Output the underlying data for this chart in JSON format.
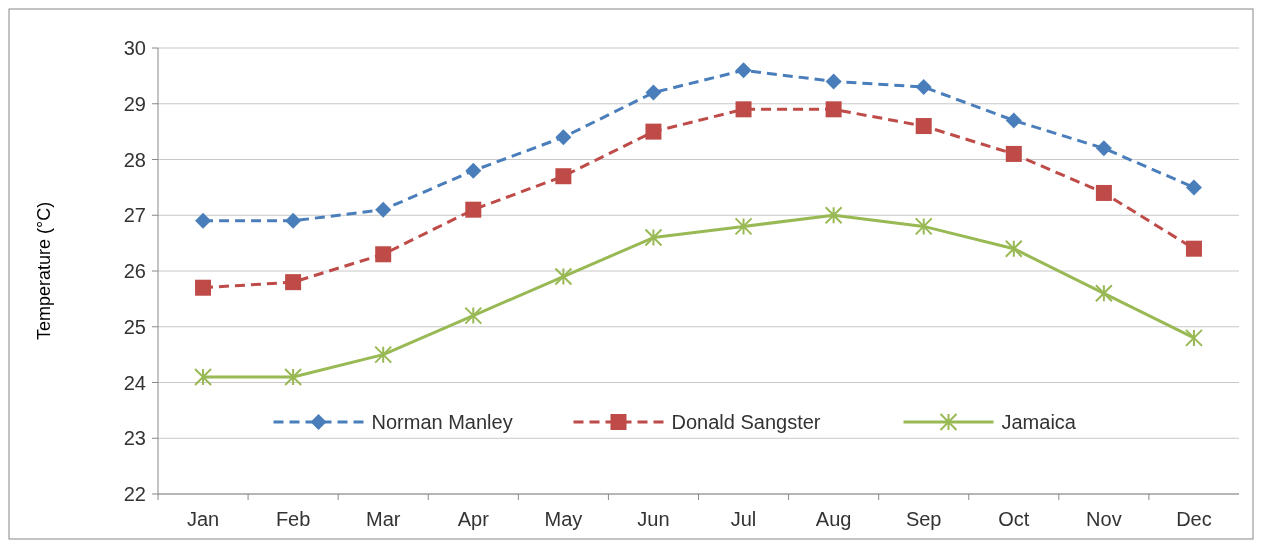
{
  "chart_data": {
    "type": "line",
    "ylabel": "Temperature (°C)",
    "categories": [
      "Jan",
      "Feb",
      "Mar",
      "Apr",
      "May",
      "Jun",
      "Jul",
      "Aug",
      "Sep",
      "Oct",
      "Nov",
      "Dec"
    ],
    "series": [
      {
        "name": "Norman Manley",
        "color": "#4a7ebb",
        "marker": "diamond",
        "line_style": "dashed",
        "values": [
          26.9,
          26.9,
          27.1,
          27.8,
          28.4,
          29.2,
          29.6,
          29.4,
          29.3,
          28.7,
          28.2,
          27.5
        ]
      },
      {
        "name": "Donald Sangster",
        "color": "#be4b48",
        "marker": "square",
        "line_style": "dashed",
        "values": [
          25.7,
          25.8,
          26.3,
          27.1,
          27.7,
          28.5,
          28.9,
          28.9,
          28.6,
          28.1,
          27.4,
          26.4
        ]
      },
      {
        "name": "Jamaica",
        "color": "#98b954",
        "marker": "cross",
        "line_style": "solid",
        "values": [
          24.1,
          24.1,
          24.5,
          25.2,
          25.9,
          26.6,
          26.8,
          27.0,
          26.8,
          26.4,
          25.6,
          24.8
        ]
      }
    ],
    "ylim": [
      22,
      30
    ],
    "yticks": [
      22,
      23,
      24,
      25,
      26,
      27,
      28,
      29,
      30
    ],
    "grid": "y",
    "legend": "bottom"
  }
}
